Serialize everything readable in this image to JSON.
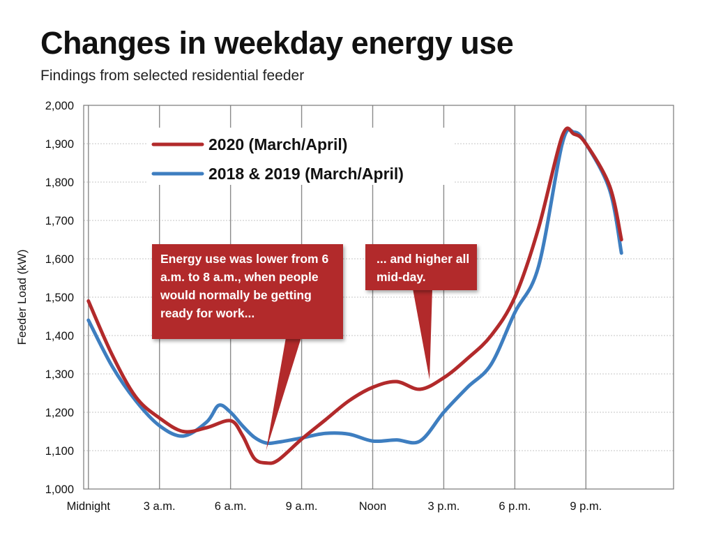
{
  "title": "Changes in weekday energy use",
  "subtitle": "Findings from selected residential feeder",
  "chart_data": {
    "type": "line",
    "ylabel": "Feeder Load (kW)",
    "xlabel": "",
    "ylim": [
      1000,
      2000
    ],
    "xlim": [
      -0.2,
      24.7
    ],
    "yticks": [
      1000,
      1100,
      1200,
      1300,
      1400,
      1500,
      1600,
      1700,
      1800,
      1900,
      2000
    ],
    "ytick_labels": [
      "1,000",
      "1,100",
      "1,200",
      "1,300",
      "1,400",
      "1,500",
      "1,600",
      "1,700",
      "1,800",
      "1,900",
      "2,000"
    ],
    "xticks": [
      0,
      3,
      6,
      9,
      12,
      15,
      18,
      21
    ],
    "xtick_labels": [
      "Midnight",
      "3 a.m.",
      "6 a.m.",
      "9 a.m.",
      "Noon",
      "3 p.m.",
      "6 p.m.",
      "9 p.m."
    ],
    "grid": true,
    "legend_position": "top-left",
    "series": [
      {
        "name": "2020 (March/April)",
        "color": "#b22a2b",
        "x": [
          0,
          1,
          2,
          3,
          4,
          5,
          6,
          6.5,
          7,
          7.5,
          8,
          9,
          10,
          11,
          12,
          13,
          14,
          15,
          16,
          17,
          18,
          19,
          20,
          20.5,
          21,
          22,
          22.5
        ],
        "y": [
          1490,
          1350,
          1240,
          1185,
          1150,
          1160,
          1178,
          1140,
          1080,
          1068,
          1075,
          1130,
          1180,
          1230,
          1265,
          1280,
          1260,
          1290,
          1340,
          1400,
          1500,
          1680,
          1920,
          1925,
          1900,
          1790,
          1650
        ]
      },
      {
        "name": "2018 & 2019 (March/April)",
        "color": "#3e7ec0",
        "x": [
          0,
          1,
          2,
          3,
          4,
          5,
          5.5,
          6,
          6.5,
          7,
          7.5,
          8,
          9,
          10,
          11,
          12,
          13,
          14,
          15,
          16,
          17,
          18,
          19,
          20,
          20.5,
          21,
          22,
          22.5
        ],
        "y": [
          1440,
          1320,
          1230,
          1165,
          1138,
          1175,
          1218,
          1200,
          1165,
          1135,
          1120,
          1122,
          1133,
          1145,
          1143,
          1125,
          1128,
          1125,
          1200,
          1265,
          1325,
          1460,
          1580,
          1900,
          1930,
          1900,
          1780,
          1615
        ]
      }
    ],
    "annotations": [
      {
        "text": "Energy use was lower from 6 a.m. to 8 a.m., when  people would normally be getting ready for work...",
        "point_x": 7.5,
        "point_y": 1100
      },
      {
        "text": "... and higher all mid-day.",
        "point_x": 14.4,
        "point_y": 1285
      }
    ]
  }
}
